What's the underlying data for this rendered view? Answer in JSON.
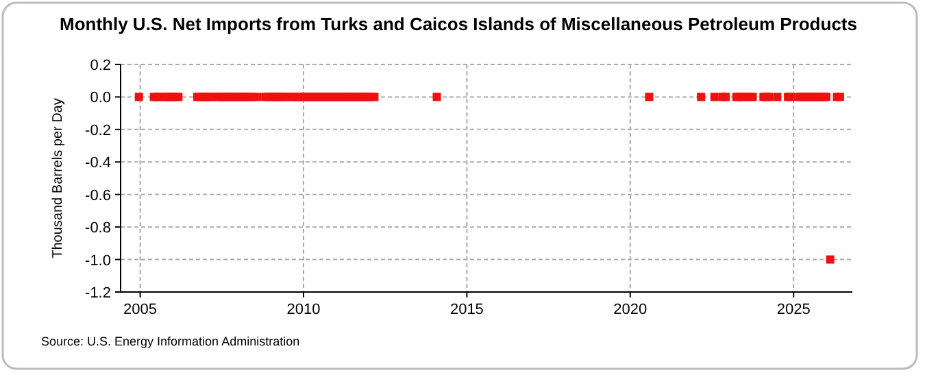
{
  "chart_data": {
    "type": "scatter",
    "title": "Monthly U.S. Net Imports from Turks and Caicos Islands of Miscellaneous Petroleum Products",
    "ylabel": "Thousand Barrels per Day",
    "annotations": [
      "Source: U.S. Energy Information Administration"
    ],
    "series": [
      {
        "color": "#ee1111",
        "x": [
          2004.96,
          2005.42,
          2005.5,
          2005.58,
          2005.75,
          2005.83,
          2005.92,
          2006.0,
          2006.08,
          2006.17,
          2006.75,
          2006.83,
          2006.92,
          2007.0,
          2007.08,
          2007.17,
          2007.33,
          2007.42,
          2007.5,
          2007.58,
          2007.67,
          2007.75,
          2007.83,
          2007.92,
          2008.0,
          2008.08,
          2008.17,
          2008.25,
          2008.33,
          2008.42,
          2008.58,
          2008.83,
          2008.92,
          2009.0,
          2009.08,
          2009.17,
          2009.25,
          2009.33,
          2009.42,
          2009.5,
          2009.67,
          2009.75,
          2009.83,
          2009.92,
          2010.0,
          2010.08,
          2010.17,
          2010.25,
          2010.33,
          2010.42,
          2010.5,
          2010.58,
          2010.67,
          2010.75,
          2010.83,
          2010.92,
          2011.0,
          2011.08,
          2011.17,
          2011.25,
          2011.33,
          2011.42,
          2011.5,
          2011.58,
          2011.67,
          2011.75,
          2011.83,
          2011.92,
          2012.0,
          2012.08,
          2012.17,
          2014.08,
          2020.58,
          2022.17,
          2022.58,
          2022.83,
          2022.92,
          2023.25,
          2023.33,
          2023.42,
          2023.5,
          2023.67,
          2023.75,
          2024.08,
          2024.17,
          2024.25,
          2024.5,
          2024.83,
          2024.92,
          2025.17,
          2025.25,
          2025.33,
          2025.42,
          2025.5,
          2025.58,
          2025.67,
          2025.75,
          2025.83,
          2025.92,
          2026.0,
          2026.33,
          2026.42
        ],
        "values": [
          0,
          0,
          0,
          0,
          0,
          0,
          0,
          0,
          0,
          0,
          0,
          0,
          0,
          0,
          0,
          0,
          0,
          0,
          0,
          0,
          0,
          0,
          0,
          0,
          0,
          0,
          0,
          0,
          0,
          0,
          0,
          0,
          0,
          0,
          0,
          0,
          0,
          0,
          0,
          0,
          0,
          0,
          0,
          0,
          0,
          0,
          0,
          0,
          0,
          0,
          0,
          0,
          0,
          0,
          0,
          0,
          0,
          0,
          0,
          0,
          0,
          0,
          0,
          0,
          0,
          0,
          0,
          0,
          0,
          0,
          0,
          0,
          0,
          0,
          0,
          0,
          0,
          0,
          0,
          0,
          0,
          0,
          0,
          0,
          0,
          0,
          0,
          0,
          0,
          0,
          0,
          0,
          0,
          0,
          0,
          0,
          0,
          0,
          0,
          0,
          0,
          0
        ]
      },
      {
        "color": "#ee1111",
        "x": [
          2026.12
        ],
        "values": [
          -1.0
        ]
      }
    ],
    "xlim": [
      2004.4,
      2026.8
    ],
    "xticks": [
      2005,
      2010,
      2015,
      2020,
      2025
    ],
    "ylim": [
      -1.2,
      0.2
    ],
    "yticks": [
      0.2,
      {
        "value": 0,
        "label": "0.0"
      },
      -0.2,
      -0.4,
      -0.6,
      -0.8,
      {
        "value": -1,
        "label": "-1.0"
      },
      -1.2
    ],
    "grid": true,
    "marker": "square"
  }
}
